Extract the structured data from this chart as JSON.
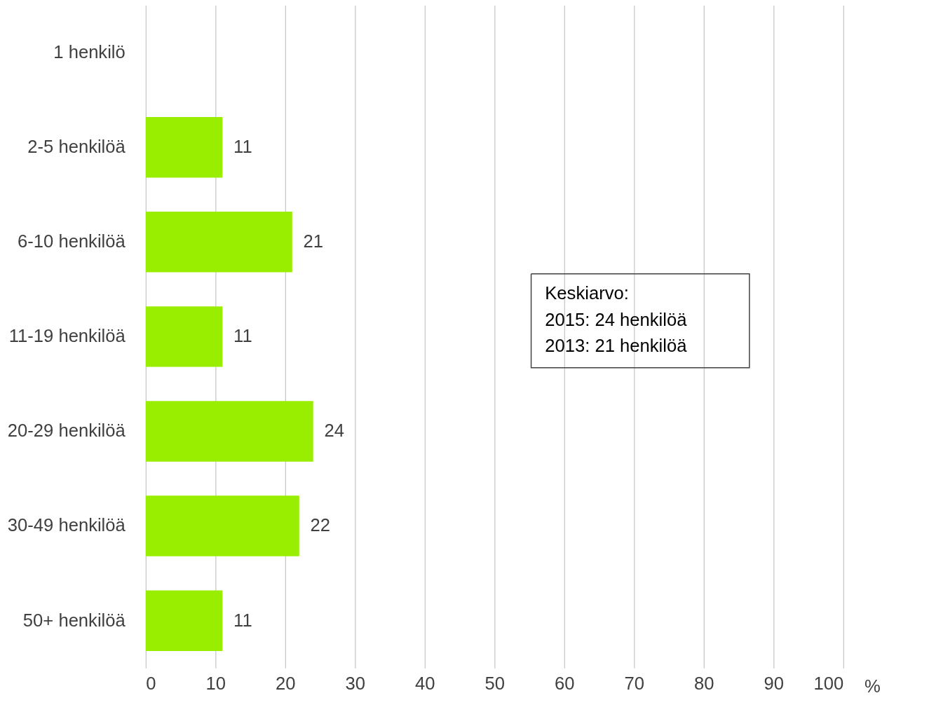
{
  "chart_data": {
    "type": "bar",
    "orientation": "horizontal",
    "categories": [
      "1 henkilö",
      "2-5 henkilöä",
      "6-10 henkilöä",
      "11-19 henkilöä",
      "20-29 henkilöä",
      "30-49 henkilöä",
      "50+ henkilöä"
    ],
    "values": [
      null,
      11,
      21,
      11,
      24,
      22,
      11
    ],
    "color": "#99ee00",
    "xlabel": "%",
    "xlim": [
      0,
      100
    ],
    "xticks": [
      0,
      10,
      20,
      30,
      40,
      50,
      60,
      70,
      80,
      90,
      100
    ],
    "grid": "x",
    "data_labels": true,
    "annotations": [
      "Keskiarvo:\n2015: 24 henkilöä\n2013: 21 henkilöä"
    ]
  }
}
